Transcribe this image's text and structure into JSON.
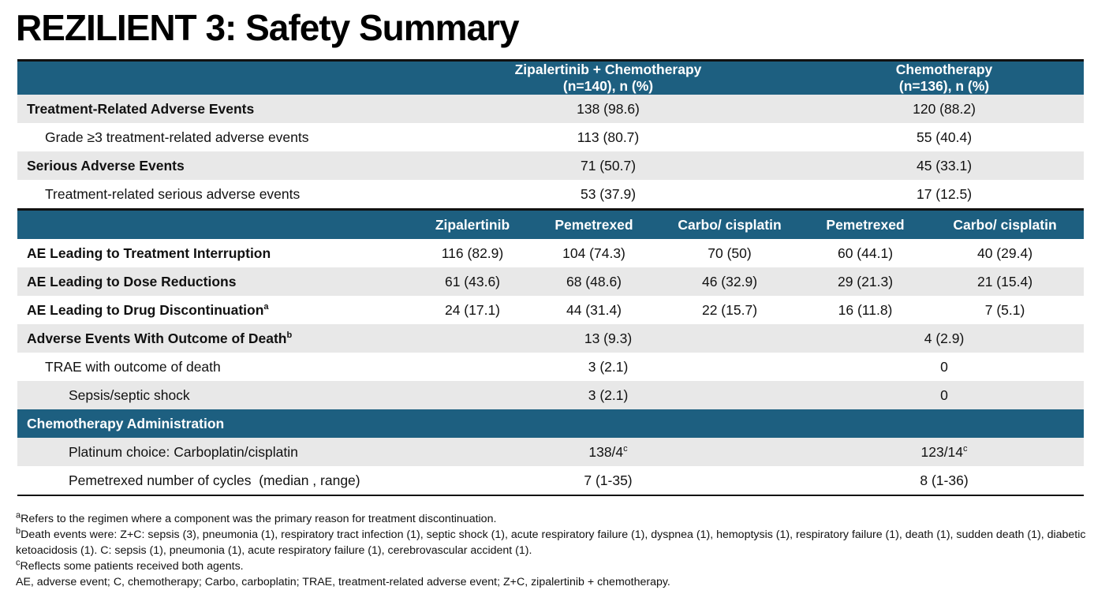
{
  "title": "REZILIENT 3: Safety Summary",
  "header": {
    "group1_line1": "Zipalertinib + Chemotherapy",
    "group1_line2": "(n=140), n (%)",
    "group2_line1": "Chemotherapy",
    "group2_line2": "(n=136), n (%)"
  },
  "rows_top": [
    {
      "label": "Treatment-Related Adverse Events",
      "g1": "138 (98.6)",
      "g2": "120 (88.2)"
    },
    {
      "label": "Grade ≥3 treatment-related adverse events",
      "g1": "113 (80.7)",
      "g2": "55 (40.4)"
    },
    {
      "label": "Serious Adverse Events",
      "g1": "71 (50.7)",
      "g2": "45 (33.1)"
    },
    {
      "label": "Treatment-related serious adverse events",
      "g1": "53 (37.9)",
      "g2": "17 (12.5)"
    }
  ],
  "subheader": [
    "Zipalertinib",
    "Pemetrexed",
    "Carbo/ cisplatin",
    "Pemetrexed",
    "Carbo/ cisplatin"
  ],
  "rows_mid": [
    {
      "label": "AE Leading to Treatment Interruption",
      "sup": "",
      "v": [
        "116 (82.9)",
        "104 (74.3)",
        "70 (50)",
        "60 (44.1)",
        "40 (29.4)"
      ]
    },
    {
      "label": "AE Leading to Dose Reductions",
      "sup": "",
      "v": [
        "61 (43.6)",
        "68 (48.6)",
        "46 (32.9)",
        "29 (21.3)",
        "21 (15.4)"
      ]
    },
    {
      "label": "AE Leading to Drug Discontinuation",
      "sup": "a",
      "v": [
        "24 (17.1)",
        "44 (31.4)",
        "22 (15.7)",
        "16 (11.8)",
        "7 (5.1)"
      ]
    }
  ],
  "rows_death": [
    {
      "label": "Adverse Events With Outcome of Death",
      "sup": "b",
      "g1": "13 (9.3)",
      "g2": "4 (2.9)"
    },
    {
      "label": "TRAE with outcome of death",
      "g1": "3 (2.1)",
      "g2": "0"
    },
    {
      "label": "Sepsis/septic shock",
      "g1": "3 (2.1)",
      "g2": "0"
    }
  ],
  "section_label": "Chemotherapy Administration",
  "rows_chemo": [
    {
      "label": "Platinum choice: Carboplatin/cisplatin",
      "g1": "138/4",
      "g1_sup": "c",
      "g2": "123/14",
      "g2_sup": "c"
    },
    {
      "label": "Pemetrexed number of cycles  (median , range)",
      "g1": "7 (1-35)",
      "g2": "8 (1-36)"
    }
  ],
  "footnotes": {
    "a_mark": "a",
    "a": "Refers to the regimen where a component was the primary reason for treatment discontinuation.",
    "b_mark": "b",
    "b": "Death events were: Z+C: sepsis (3), pneumonia (1), respiratory tract infection (1), septic shock (1), acute respiratory failure (1), dyspnea (1), hemoptysis (1), respiratory failure (1), death (1), sudden death (1), diabetic ketoacidosis (1). C: sepsis (1), pneumonia (1), acute respiratory failure (1), cerebrovascular accident (1).",
    "c_mark": "c",
    "c": "Reflects some patients received both agents.",
    "abbrev": "AE, adverse event; C, chemotherapy; Carbo, carboplatin; TRAE, treatment-related adverse event; Z+C, zipalertinib + chemotherapy."
  }
}
